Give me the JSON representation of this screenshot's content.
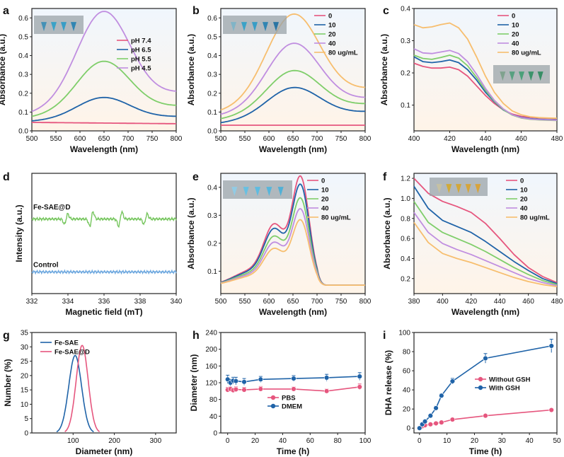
{
  "colors": {
    "red": "#e6567e",
    "blue": "#1f63a8",
    "green": "#7fce6a",
    "purple": "#c08ee0",
    "orange": "#f7be6e",
    "epr_green": "#77c65f",
    "epr_blue": "#6ea8df",
    "dls_blue": "#1f63a8",
    "dls_pink": "#e6567e",
    "bg_top": "#f1f6fd",
    "bg_bottom": "#fff5ea"
  },
  "chart_data": [
    {
      "panel": "a",
      "type": "line",
      "xlabel": "Wavelength (nm)",
      "ylabel": "Absorbance (a.u.)",
      "xlim": [
        500,
        800
      ],
      "ylim": [
        0,
        0.65
      ],
      "xticks": [
        "500",
        "550",
        "600",
        "650",
        "700",
        "750",
        "800"
      ],
      "yticks": [
        "0.0",
        "0.1",
        "0.2",
        "0.3",
        "0.4",
        "0.5",
        "0.6"
      ],
      "legend": [
        "pH 7.4",
        "pH 6.5",
        "pH 5.5",
        "pH 4.5"
      ],
      "series": [
        {
          "name": "pH 7.4",
          "color": "red",
          "kind": "gauss",
          "base": [
            0.045,
            0.038
          ],
          "peak": 0,
          "center": 650,
          "sigma": 60
        },
        {
          "name": "pH 6.5",
          "color": "blue",
          "kind": "gauss",
          "base": [
            0.05,
            0.075
          ],
          "peak": 0.115,
          "center": 648,
          "sigma": 55
        },
        {
          "name": "pH 5.5",
          "color": "green",
          "kind": "gauss",
          "base": [
            0.07,
            0.13
          ],
          "peak": 0.27,
          "center": 648,
          "sigma": 55
        },
        {
          "name": "pH 4.5",
          "color": "purple",
          "kind": "gauss",
          "base": [
            0.09,
            0.2
          ],
          "peak": 0.49,
          "center": 648,
          "sigma": 55
        }
      ]
    },
    {
      "panel": "b",
      "type": "line",
      "xlabel": "Wavelength (nm)",
      "ylabel": "Absorbance (a.u.)",
      "xlim": [
        500,
        800
      ],
      "ylim": [
        0,
        0.65
      ],
      "xticks": [
        "500",
        "550",
        "600",
        "650",
        "700",
        "750",
        "800"
      ],
      "yticks": [
        "0.0",
        "0.1",
        "0.2",
        "0.3",
        "0.4",
        "0.5",
        "0.6"
      ],
      "legend": [
        "0",
        "10",
        "20",
        "40",
        "80 ug/mL"
      ],
      "series": [
        {
          "name": "0",
          "color": "red",
          "kind": "gauss",
          "base": [
            0.03,
            0.03
          ],
          "peak": 0,
          "center": 650,
          "sigma": 55
        },
        {
          "name": "10",
          "color": "blue",
          "kind": "gauss",
          "base": [
            0.04,
            0.1
          ],
          "peak": 0.16,
          "center": 650,
          "sigma": 55
        },
        {
          "name": "20",
          "color": "green",
          "kind": "gauss",
          "base": [
            0.06,
            0.14
          ],
          "peak": 0.22,
          "center": 650,
          "sigma": 55
        },
        {
          "name": "40",
          "color": "purple",
          "kind": "gauss",
          "base": [
            0.08,
            0.17
          ],
          "peak": 0.34,
          "center": 650,
          "sigma": 55
        },
        {
          "name": "80 ug/mL",
          "color": "orange",
          "kind": "gauss",
          "base": [
            0.1,
            0.22
          ],
          "peak": 0.46,
          "center": 650,
          "sigma": 55
        }
      ]
    },
    {
      "panel": "c",
      "type": "line",
      "xlabel": "Wavelength (nm)",
      "ylabel": "Absorbance (a.u.)",
      "xlim": [
        400,
        480
      ],
      "ylim": [
        0.02,
        0.4
      ],
      "xticks": [
        "400",
        "420",
        "440",
        "460",
        "480"
      ],
      "yticks": [
        "0.1",
        "0.2",
        "0.3",
        "0.4"
      ],
      "legend": [
        "0",
        "10",
        "20",
        "40",
        "80 ug/mL"
      ],
      "series": [
        {
          "name": "0",
          "color": "red",
          "kind": "points",
          "x": [
            400,
            405,
            410,
            415,
            420,
            425,
            430,
            435,
            440,
            445,
            450,
            455,
            460,
            465,
            470,
            475,
            480
          ],
          "y": [
            0.23,
            0.22,
            0.215,
            0.215,
            0.218,
            0.21,
            0.19,
            0.16,
            0.13,
            0.105,
            0.085,
            0.072,
            0.065,
            0.062,
            0.06,
            0.059,
            0.058
          ]
        },
        {
          "name": "10",
          "color": "blue",
          "kind": "points",
          "x": [
            400,
            405,
            410,
            415,
            420,
            425,
            430,
            435,
            440,
            445,
            450,
            455,
            460,
            465,
            470,
            475,
            480
          ],
          "y": [
            0.25,
            0.235,
            0.232,
            0.235,
            0.24,
            0.232,
            0.21,
            0.178,
            0.14,
            0.11,
            0.085,
            0.07,
            0.062,
            0.058,
            0.056,
            0.055,
            0.054
          ]
        },
        {
          "name": "20",
          "color": "green",
          "kind": "points",
          "x": [
            400,
            405,
            410,
            415,
            420,
            425,
            430,
            435,
            440,
            445,
            450,
            455,
            460,
            465,
            470,
            475,
            480
          ],
          "y": [
            0.255,
            0.245,
            0.242,
            0.248,
            0.255,
            0.246,
            0.222,
            0.186,
            0.146,
            0.112,
            0.086,
            0.069,
            0.06,
            0.056,
            0.054,
            0.053,
            0.052
          ]
        },
        {
          "name": "40",
          "color": "purple",
          "kind": "points",
          "x": [
            400,
            405,
            410,
            415,
            420,
            425,
            430,
            435,
            440,
            445,
            450,
            455,
            460,
            465,
            470,
            475,
            480
          ],
          "y": [
            0.275,
            0.262,
            0.26,
            0.265,
            0.27,
            0.26,
            0.235,
            0.196,
            0.152,
            0.115,
            0.088,
            0.07,
            0.061,
            0.057,
            0.055,
            0.054,
            0.053
          ]
        },
        {
          "name": "80 ug/mL",
          "color": "orange",
          "kind": "points",
          "x": [
            400,
            405,
            410,
            415,
            420,
            425,
            430,
            435,
            440,
            445,
            450,
            455,
            460,
            465,
            470,
            475,
            480
          ],
          "y": [
            0.35,
            0.34,
            0.343,
            0.35,
            0.355,
            0.34,
            0.305,
            0.25,
            0.19,
            0.14,
            0.105,
            0.082,
            0.07,
            0.064,
            0.061,
            0.06,
            0.059
          ]
        }
      ]
    },
    {
      "panel": "d",
      "type": "line",
      "xlabel": "Magnetic field (mT)",
      "ylabel": "Intensity (a.u.)",
      "xlim": [
        332,
        340
      ],
      "xticks": [
        "332",
        "334",
        "336",
        "338",
        "340"
      ],
      "labels": [
        "Fe-SAE@D",
        "Control"
      ],
      "series": [
        {
          "name": "Fe-SAE@D",
          "color": "epr_green",
          "lines": [
            333.9,
            335.3,
            336.9,
            338.3
          ],
          "offset": 0.62
        },
        {
          "name": "Control",
          "color": "epr_blue",
          "lines": [],
          "offset": 0.18
        }
      ]
    },
    {
      "panel": "e",
      "type": "line",
      "xlabel": "Wavelength (nm)",
      "ylabel": "Absorbance (a.u.)",
      "xlim": [
        500,
        800
      ],
      "ylim": [
        0.02,
        0.45
      ],
      "xticks": [
        "500",
        "550",
        "600",
        "650",
        "700",
        "750",
        "800"
      ],
      "yticks": [
        "0.1",
        "0.2",
        "0.3",
        "0.4"
      ],
      "legend": [
        "0",
        "10",
        "20",
        "40",
        "80 ug/mL"
      ],
      "series": [
        {
          "name": "0",
          "color": "red",
          "kind": "band",
          "scale": 0.4
        },
        {
          "name": "10",
          "color": "blue",
          "kind": "band",
          "scale": 0.37
        },
        {
          "name": "20",
          "color": "green",
          "kind": "band",
          "scale": 0.32
        },
        {
          "name": "40",
          "color": "purple",
          "kind": "band",
          "scale": 0.28
        },
        {
          "name": "80 ug/mL",
          "color": "orange",
          "kind": "band",
          "scale": 0.24
        }
      ]
    },
    {
      "panel": "f",
      "type": "line",
      "xlabel": "Wavelength (nm)",
      "ylabel": "Absorbance (a.u.)",
      "xlim": [
        380,
        480
      ],
      "ylim": [
        0.05,
        1.25
      ],
      "xticks": [
        "380",
        "400",
        "420",
        "440",
        "460",
        "480"
      ],
      "yticks": [
        "0.2",
        "0.4",
        "0.6",
        "0.8",
        "1.0",
        "1.2"
      ],
      "legend": [
        "0",
        "10",
        "20",
        "40",
        "80 ug/mL"
      ],
      "series": [
        {
          "name": "0",
          "color": "red",
          "kind": "points",
          "x": [
            380,
            390,
            400,
            410,
            420,
            430,
            440,
            450,
            460,
            470,
            480
          ],
          "y": [
            1.2,
            1.05,
            0.97,
            0.92,
            0.86,
            0.75,
            0.6,
            0.44,
            0.31,
            0.22,
            0.16
          ]
        },
        {
          "name": "10",
          "color": "blue",
          "kind": "points",
          "x": [
            380,
            390,
            400,
            410,
            420,
            430,
            440,
            450,
            460,
            470,
            480
          ],
          "y": [
            1.12,
            0.9,
            0.78,
            0.72,
            0.66,
            0.57,
            0.47,
            0.37,
            0.28,
            0.2,
            0.15
          ]
        },
        {
          "name": "20",
          "color": "green",
          "kind": "points",
          "x": [
            380,
            390,
            400,
            410,
            420,
            430,
            440,
            450,
            460,
            470,
            480
          ],
          "y": [
            0.97,
            0.76,
            0.66,
            0.6,
            0.54,
            0.47,
            0.39,
            0.31,
            0.24,
            0.18,
            0.14
          ]
        },
        {
          "name": "40",
          "color": "purple",
          "kind": "points",
          "x": [
            380,
            390,
            400,
            410,
            420,
            430,
            440,
            450,
            460,
            470,
            480
          ],
          "y": [
            0.86,
            0.66,
            0.55,
            0.49,
            0.44,
            0.38,
            0.32,
            0.26,
            0.2,
            0.16,
            0.13
          ]
        },
        {
          "name": "80 ug/mL",
          "color": "orange",
          "kind": "points",
          "x": [
            380,
            390,
            400,
            410,
            420,
            430,
            440,
            450,
            460,
            470,
            480
          ],
          "y": [
            0.76,
            0.56,
            0.45,
            0.4,
            0.36,
            0.31,
            0.26,
            0.21,
            0.17,
            0.14,
            0.12
          ]
        }
      ]
    },
    {
      "panel": "g",
      "type": "area",
      "xlabel": "Diameter (nm)",
      "ylabel": "Number (%)",
      "xlim": [
        0,
        350
      ],
      "ylim": [
        0,
        35
      ],
      "xticks": [
        "100",
        "200",
        "300"
      ],
      "yticks": [
        "0",
        "5",
        "10",
        "15",
        "20",
        "25",
        "30",
        "35"
      ],
      "legend": [
        "Fe-SAE",
        "Fe-SAE@D"
      ],
      "series": [
        {
          "name": "Fe-SAE",
          "color": "dls_blue",
          "center": 105,
          "peak": 27,
          "halfwidth": 45
        },
        {
          "name": "Fe-SAE@D",
          "color": "dls_pink",
          "center": 122,
          "peak": 30.5,
          "halfwidth": 42
        }
      ]
    },
    {
      "panel": "h",
      "type": "scatter",
      "xlabel": "Time (h)",
      "ylabel": "Diameter (nm)",
      "xlim": [
        -5,
        100
      ],
      "ylim": [
        0,
        240
      ],
      "xticks": [
        "0",
        "20",
        "40",
        "60",
        "80",
        "100"
      ],
      "yticks": [
        "0",
        "40",
        "80",
        "120",
        "160",
        "200",
        "240"
      ],
      "legend": [
        "PBS",
        "DMEM"
      ],
      "series": [
        {
          "name": "PBS",
          "color": "dls_pink",
          "x": [
            0,
            2,
            4,
            6,
            12,
            24,
            48,
            72,
            96
          ],
          "y": [
            103,
            105,
            102,
            104,
            103,
            105,
            105,
            100,
            110
          ],
          "err": [
            6,
            5,
            5,
            6,
            6,
            6,
            5,
            5,
            7
          ]
        },
        {
          "name": "DMEM",
          "color": "dls_blue",
          "x": [
            0,
            2,
            4,
            6,
            12,
            24,
            48,
            72,
            96
          ],
          "y": [
            128,
            120,
            125,
            124,
            122,
            128,
            130,
            132,
            135
          ],
          "err": [
            10,
            8,
            8,
            9,
            8,
            7,
            7,
            8,
            9
          ]
        }
      ]
    },
    {
      "panel": "i",
      "type": "scatter",
      "xlabel": "Time (h)",
      "ylabel": "DHA release (%)",
      "xlim": [
        -2,
        50
      ],
      "ylim": [
        -5,
        100
      ],
      "xticks": [
        "0",
        "10",
        "20",
        "30",
        "40",
        "50"
      ],
      "yticks": [
        "0",
        "20",
        "40",
        "60",
        "80",
        "100"
      ],
      "legend": [
        "Without GSH",
        "With GSH"
      ],
      "series": [
        {
          "name": "Without GSH",
          "color": "dls_pink",
          "x": [
            0,
            1,
            2,
            4,
            6,
            8,
            12,
            24,
            48
          ],
          "y": [
            0,
            2,
            3,
            4,
            5,
            6,
            9,
            13,
            19
          ],
          "err": [
            0.5,
            0.5,
            0.5,
            0.6,
            0.6,
            0.7,
            0.8,
            1,
            1.2
          ]
        },
        {
          "name": "With GSH",
          "color": "dls_blue",
          "x": [
            0,
            1,
            2,
            4,
            6,
            8,
            12,
            24,
            48
          ],
          "y": [
            0,
            4,
            7,
            13,
            21,
            34,
            49,
            73,
            86
          ],
          "err": [
            0.5,
            1,
            1,
            1.5,
            2,
            2,
            3,
            5,
            7
          ]
        }
      ]
    }
  ]
}
